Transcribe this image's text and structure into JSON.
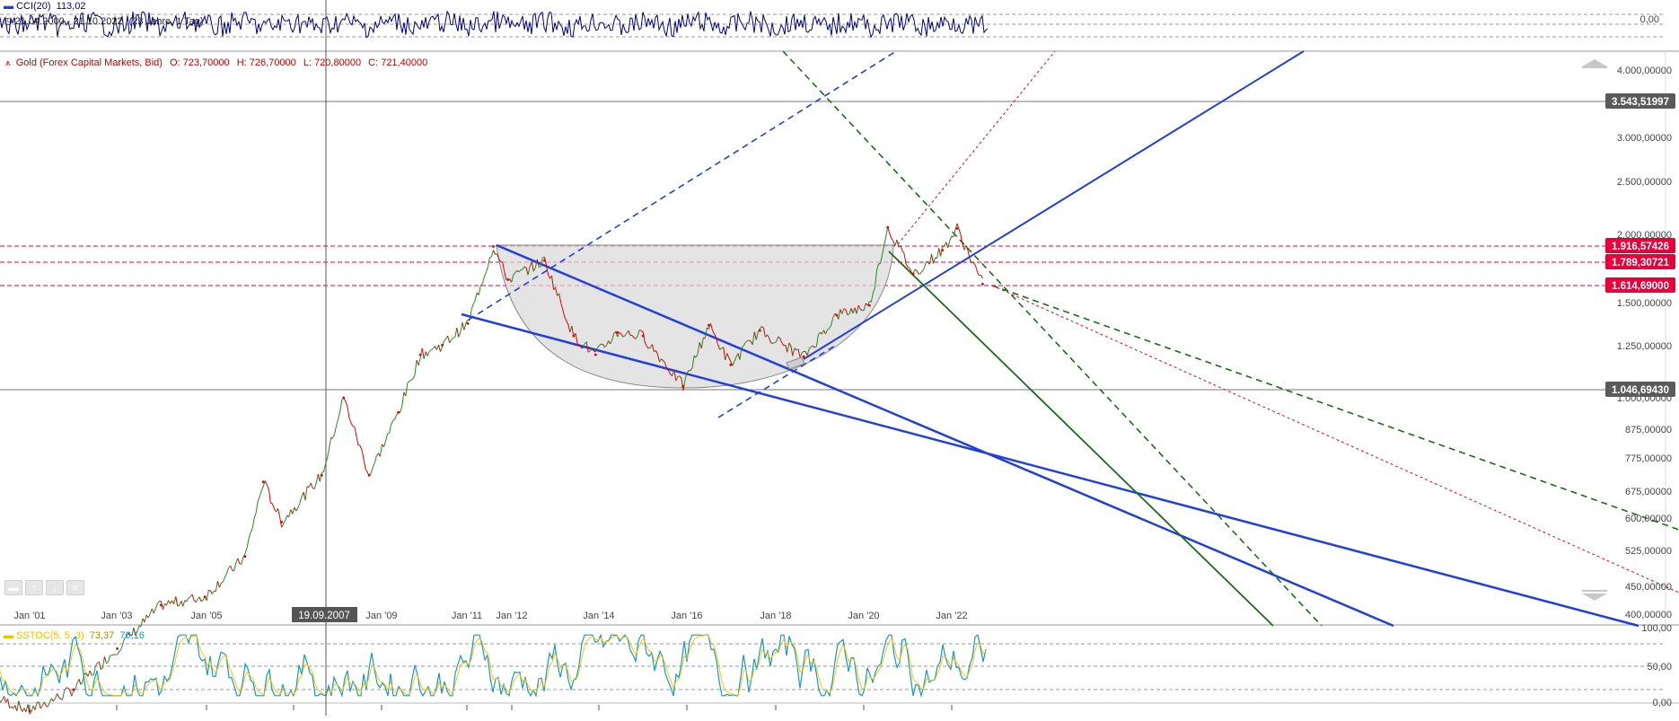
{
  "top_panel": {
    "indicator_label": "CCI(20)",
    "indicator_value": "113,02",
    "range_label": "21.04.2000 - 21.10.2022",
    "period_label": "(23 Jahre, 1 Tag)",
    "zero_tick": "0,00"
  },
  "main_panel": {
    "instrument_icon": "price-chart-icon",
    "instrument": "Gold (Forex Capital Markets, Bid)",
    "ohlc": {
      "open": "O: 723,70000",
      "high": "H: 726,70000",
      "low": "L: 720,80000",
      "close": "C: 721,40000"
    },
    "crosshair_date": "19.09.2007",
    "price_ticks": [
      "4.000,00000",
      "3.000,00000",
      "2.500,00000",
      "2.000,00000",
      "1.500,00000",
      "1.250,00000",
      "1.000,00000",
      "875,00000",
      "775,00000",
      "675,00000",
      "600,00000",
      "525,00000",
      "450,00000",
      "400,00000"
    ],
    "price_tags": [
      {
        "label": "3.543,51997",
        "color": "#5a5a5a"
      },
      {
        "label": "1.916,57426",
        "color": "#e8003a"
      },
      {
        "label": "1.789,30721",
        "color": "#e8003a"
      },
      {
        "label": "1.614,69000",
        "color": "#e8003a"
      },
      {
        "label": "1.046,69430",
        "color": "#5a5a5a"
      }
    ],
    "x_ticks": [
      "Jan '01",
      "Jan '03",
      "Jan '05",
      "Jan '09",
      "Jan '11",
      "Jan '12",
      "Jan '14",
      "Jan '16",
      "Jan '18",
      "Jan '20",
      "Jan '22"
    ],
    "nav_buttons": [
      "minus-icon",
      "arrow-up-icon",
      "arrow-down-icon",
      "collapse-icon"
    ]
  },
  "bottom_panel": {
    "indicator_label": "SSTOC(5, 5, 3)",
    "k_value": "73,37",
    "d_value": "76,16",
    "ticks": [
      "100,00",
      "50,00",
      "0,00"
    ]
  },
  "colors": {
    "cci_line": "#00008b",
    "price_up": "#228b22",
    "price_down": "#dd0000",
    "channel_blue": "#1f3fe0",
    "trend_green": "#1a6b1a",
    "stoch_k": "#1a9ab8",
    "stoch_d": "#f2c200",
    "tag_red": "#e8003a",
    "tag_grey": "#5a5a5a"
  },
  "chart_data": {
    "type": "line",
    "title": "Gold (Forex Capital Markets, Bid)",
    "x_range": [
      "2000-04-21",
      "2022-10-21"
    ],
    "price_scale": "log",
    "ylim": [
      350,
      4300
    ],
    "x": [
      "2000-04",
      "2001-01",
      "2002-01",
      "2003-01",
      "2004-01",
      "2005-01",
      "2005-12",
      "2006-05",
      "2006-10",
      "2007-09",
      "2008-03",
      "2008-10",
      "2009-06",
      "2009-12",
      "2010-06",
      "2011-01",
      "2011-08",
      "2011-12",
      "2012-10",
      "2013-06",
      "2013-12",
      "2014-06",
      "2015-01",
      "2015-12",
      "2016-07",
      "2017-01",
      "2017-09",
      "2018-09",
      "2019-06",
      "2020-03",
      "2020-08",
      "2021-03",
      "2021-11",
      "2022-03",
      "2022-10"
    ],
    "series": [
      {
        "values": [
          280,
          265,
          290,
          345,
          415,
          430,
          510,
          700,
          590,
          720,
          1000,
          720,
          940,
          1200,
          1250,
          1370,
          1900,
          1650,
          1790,
          1300,
          1200,
          1320,
          1300,
          1050,
          1360,
          1150,
          1330,
          1190,
          1420,
          1480,
          2060,
          1690,
          1870,
          2050,
          1620
        ]
      }
    ],
    "horizontal_levels": [
      3543.51997,
      1916.57426,
      1789.30721,
      1614.69,
      1046.6943
    ],
    "oscillators": {
      "cci": {
        "name": "CCI(20)",
        "last": 113.02
      },
      "stochastic": {
        "name": "SSTOC(5, 5, 3)",
        "k": 73.37,
        "d": 76.16,
        "ylim": [
          0,
          100
        ]
      }
    }
  }
}
